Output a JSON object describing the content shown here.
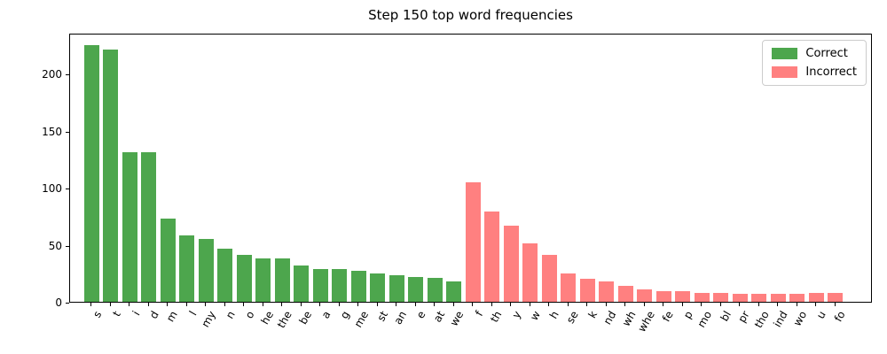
{
  "title": "Step 150 top word frequencies",
  "chart_data": {
    "type": "bar",
    "title": "Step 150 top word frequencies",
    "xlabel": "",
    "ylabel": "",
    "ylim": [
      0,
      236
    ],
    "y_ticks": [
      0,
      50,
      100,
      150,
      200
    ],
    "grid": false,
    "legend_position": "upper right",
    "x_label_rotation_deg": 60,
    "series": [
      {
        "name": "Correct",
        "color": "#4da64d",
        "categories": [
          "s",
          "t",
          "i",
          "d",
          "m",
          "l",
          "my",
          "n",
          "o",
          "he",
          "the",
          "be",
          "a",
          "g",
          "me",
          "st",
          "an",
          "e",
          "at",
          "we"
        ],
        "values": [
          225,
          221,
          131,
          131,
          73,
          58,
          55,
          47,
          41,
          38,
          38,
          32,
          29,
          29,
          27,
          25,
          23,
          22,
          21,
          18
        ]
      },
      {
        "name": "Incorrect",
        "color": "#ff8080",
        "categories": [
          "f",
          "th",
          "y",
          "w",
          "h",
          "se",
          "k",
          "nd",
          "wh",
          "whe",
          "fe",
          "p",
          "mo",
          "bl",
          "pr",
          "tho",
          "ind",
          "wo",
          "u",
          "fo"
        ],
        "values": [
          105,
          79,
          67,
          51,
          41,
          25,
          20,
          18,
          14,
          11,
          9,
          9,
          8,
          8,
          7,
          7,
          7,
          7,
          8,
          8
        ]
      }
    ]
  }
}
